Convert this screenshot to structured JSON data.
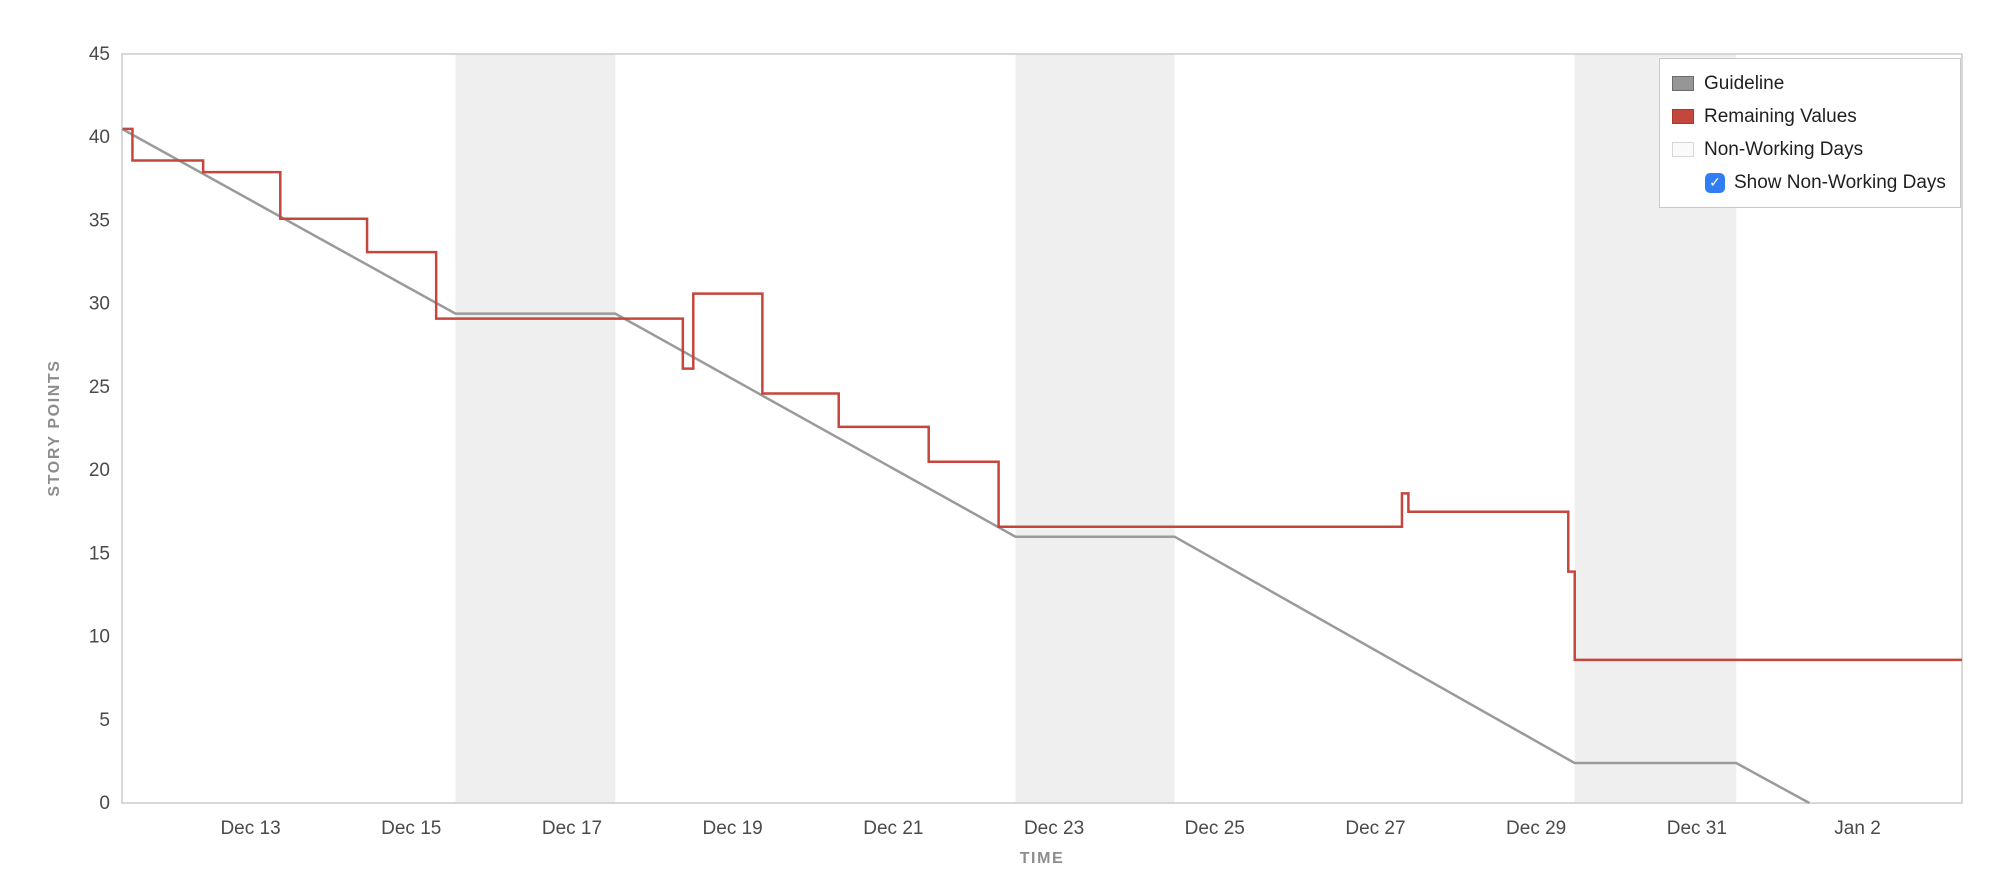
{
  "chart_data": {
    "type": "line",
    "title": "",
    "xlabel": "TIME",
    "ylabel": "STORY POINTS",
    "ylim": [
      0,
      45
    ],
    "x_domain_days": [
      11.4,
      34.3
    ],
    "y_ticks": [
      0,
      5,
      10,
      15,
      20,
      25,
      30,
      35,
      40,
      45
    ],
    "x_ticks": [
      {
        "day": 13,
        "label": "Dec 13"
      },
      {
        "day": 15,
        "label": "Dec 15"
      },
      {
        "day": 17,
        "label": "Dec 17"
      },
      {
        "day": 19,
        "label": "Dec 19"
      },
      {
        "day": 21,
        "label": "Dec 21"
      },
      {
        "day": 23,
        "label": "Dec 23"
      },
      {
        "day": 25,
        "label": "Dec 25"
      },
      {
        "day": 27,
        "label": "Dec 27"
      },
      {
        "day": 29,
        "label": "Dec 29"
      },
      {
        "day": 31,
        "label": "Dec 31"
      },
      {
        "day": 33,
        "label": "Jan 2"
      }
    ],
    "non_working_days": [
      [
        15.55,
        17.54
      ],
      [
        22.52,
        24.5
      ],
      [
        29.48,
        31.49
      ]
    ],
    "colors": {
      "non_working_fill": "#efefef",
      "plot_border": "#cccccc",
      "guideline": "#9a9a9a",
      "remaining": "#c5463c"
    },
    "series": [
      {
        "name": "Guideline",
        "mode": "linear",
        "color": "#9a9a9a",
        "data_name": "guideline-series",
        "points": [
          [
            11.4,
            40.5
          ],
          [
            15.55,
            29.4
          ],
          [
            17.54,
            29.4
          ],
          [
            22.52,
            16.0
          ],
          [
            24.5,
            16.0
          ],
          [
            29.48,
            2.4
          ],
          [
            31.49,
            2.4
          ],
          [
            32.4,
            0.0
          ]
        ]
      },
      {
        "name": "Remaining Values",
        "mode": "step",
        "color": "#c5463c",
        "data_name": "remaining-values-series",
        "points": [
          [
            11.41,
            40.5
          ],
          [
            11.53,
            38.6
          ],
          [
            12.41,
            37.9
          ],
          [
            13.37,
            35.1
          ],
          [
            14.45,
            33.1
          ],
          [
            15.31,
            29.1
          ],
          [
            18.38,
            26.1
          ],
          [
            18.51,
            30.6
          ],
          [
            19.37,
            24.6
          ],
          [
            20.32,
            22.6
          ],
          [
            21.44,
            20.5
          ],
          [
            22.31,
            16.6
          ],
          [
            27.33,
            18.6
          ],
          [
            27.41,
            17.5
          ],
          [
            29.4,
            13.9
          ],
          [
            29.48,
            8.6
          ],
          [
            34.3,
            8.6
          ]
        ]
      }
    ],
    "legend_position": "top-right",
    "grid": false
  },
  "legend": {
    "items": [
      {
        "label": "Guideline",
        "fill": "#969696",
        "border": "#6b6b6b"
      },
      {
        "label": "Remaining Values",
        "fill": "#c5463c",
        "border": "#a53a31"
      },
      {
        "label": "Non-Working Days",
        "fill": "#fafafa",
        "border": "#d8d8d8"
      }
    ],
    "checkbox": {
      "label": "Show Non-Working Days",
      "checked": true,
      "color": "#317ef3",
      "checkmark": "✓"
    }
  }
}
